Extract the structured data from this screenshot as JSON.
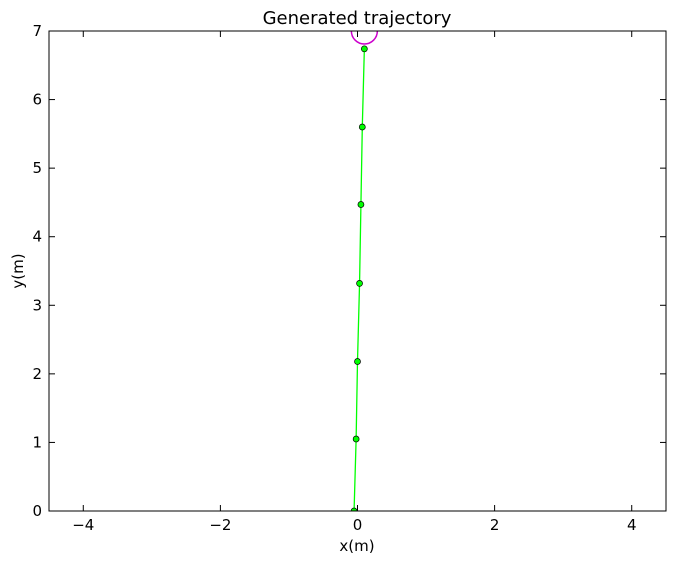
{
  "chart_data": {
    "type": "line",
    "title": "Generated trajectory",
    "xlabel": "x(m)",
    "ylabel": "y(m)",
    "xlim": [
      -4.5,
      4.5
    ],
    "ylim": [
      0,
      7
    ],
    "x_ticks": [
      -4,
      -2,
      0,
      2,
      4
    ],
    "x_tick_labels": [
      "−4",
      "−2",
      "0",
      "2",
      "4"
    ],
    "y_ticks": [
      0,
      1,
      2,
      3,
      4,
      5,
      6,
      7
    ],
    "y_tick_labels": [
      "0",
      "1",
      "2",
      "3",
      "4",
      "5",
      "6",
      "7"
    ],
    "grid": false,
    "series": [
      {
        "color": "#00ff00",
        "marker": "circle",
        "x": [
          -0.05,
          -0.02,
          0.0,
          0.03,
          0.05,
          0.07,
          0.1
        ],
        "y": [
          0.0,
          1.05,
          2.18,
          3.32,
          4.47,
          5.6,
          6.74
        ]
      }
    ],
    "annotations": [
      {
        "shape": "circle-marker",
        "color": "#cc00cc",
        "x": 0.1,
        "y": 7.0
      }
    ]
  }
}
